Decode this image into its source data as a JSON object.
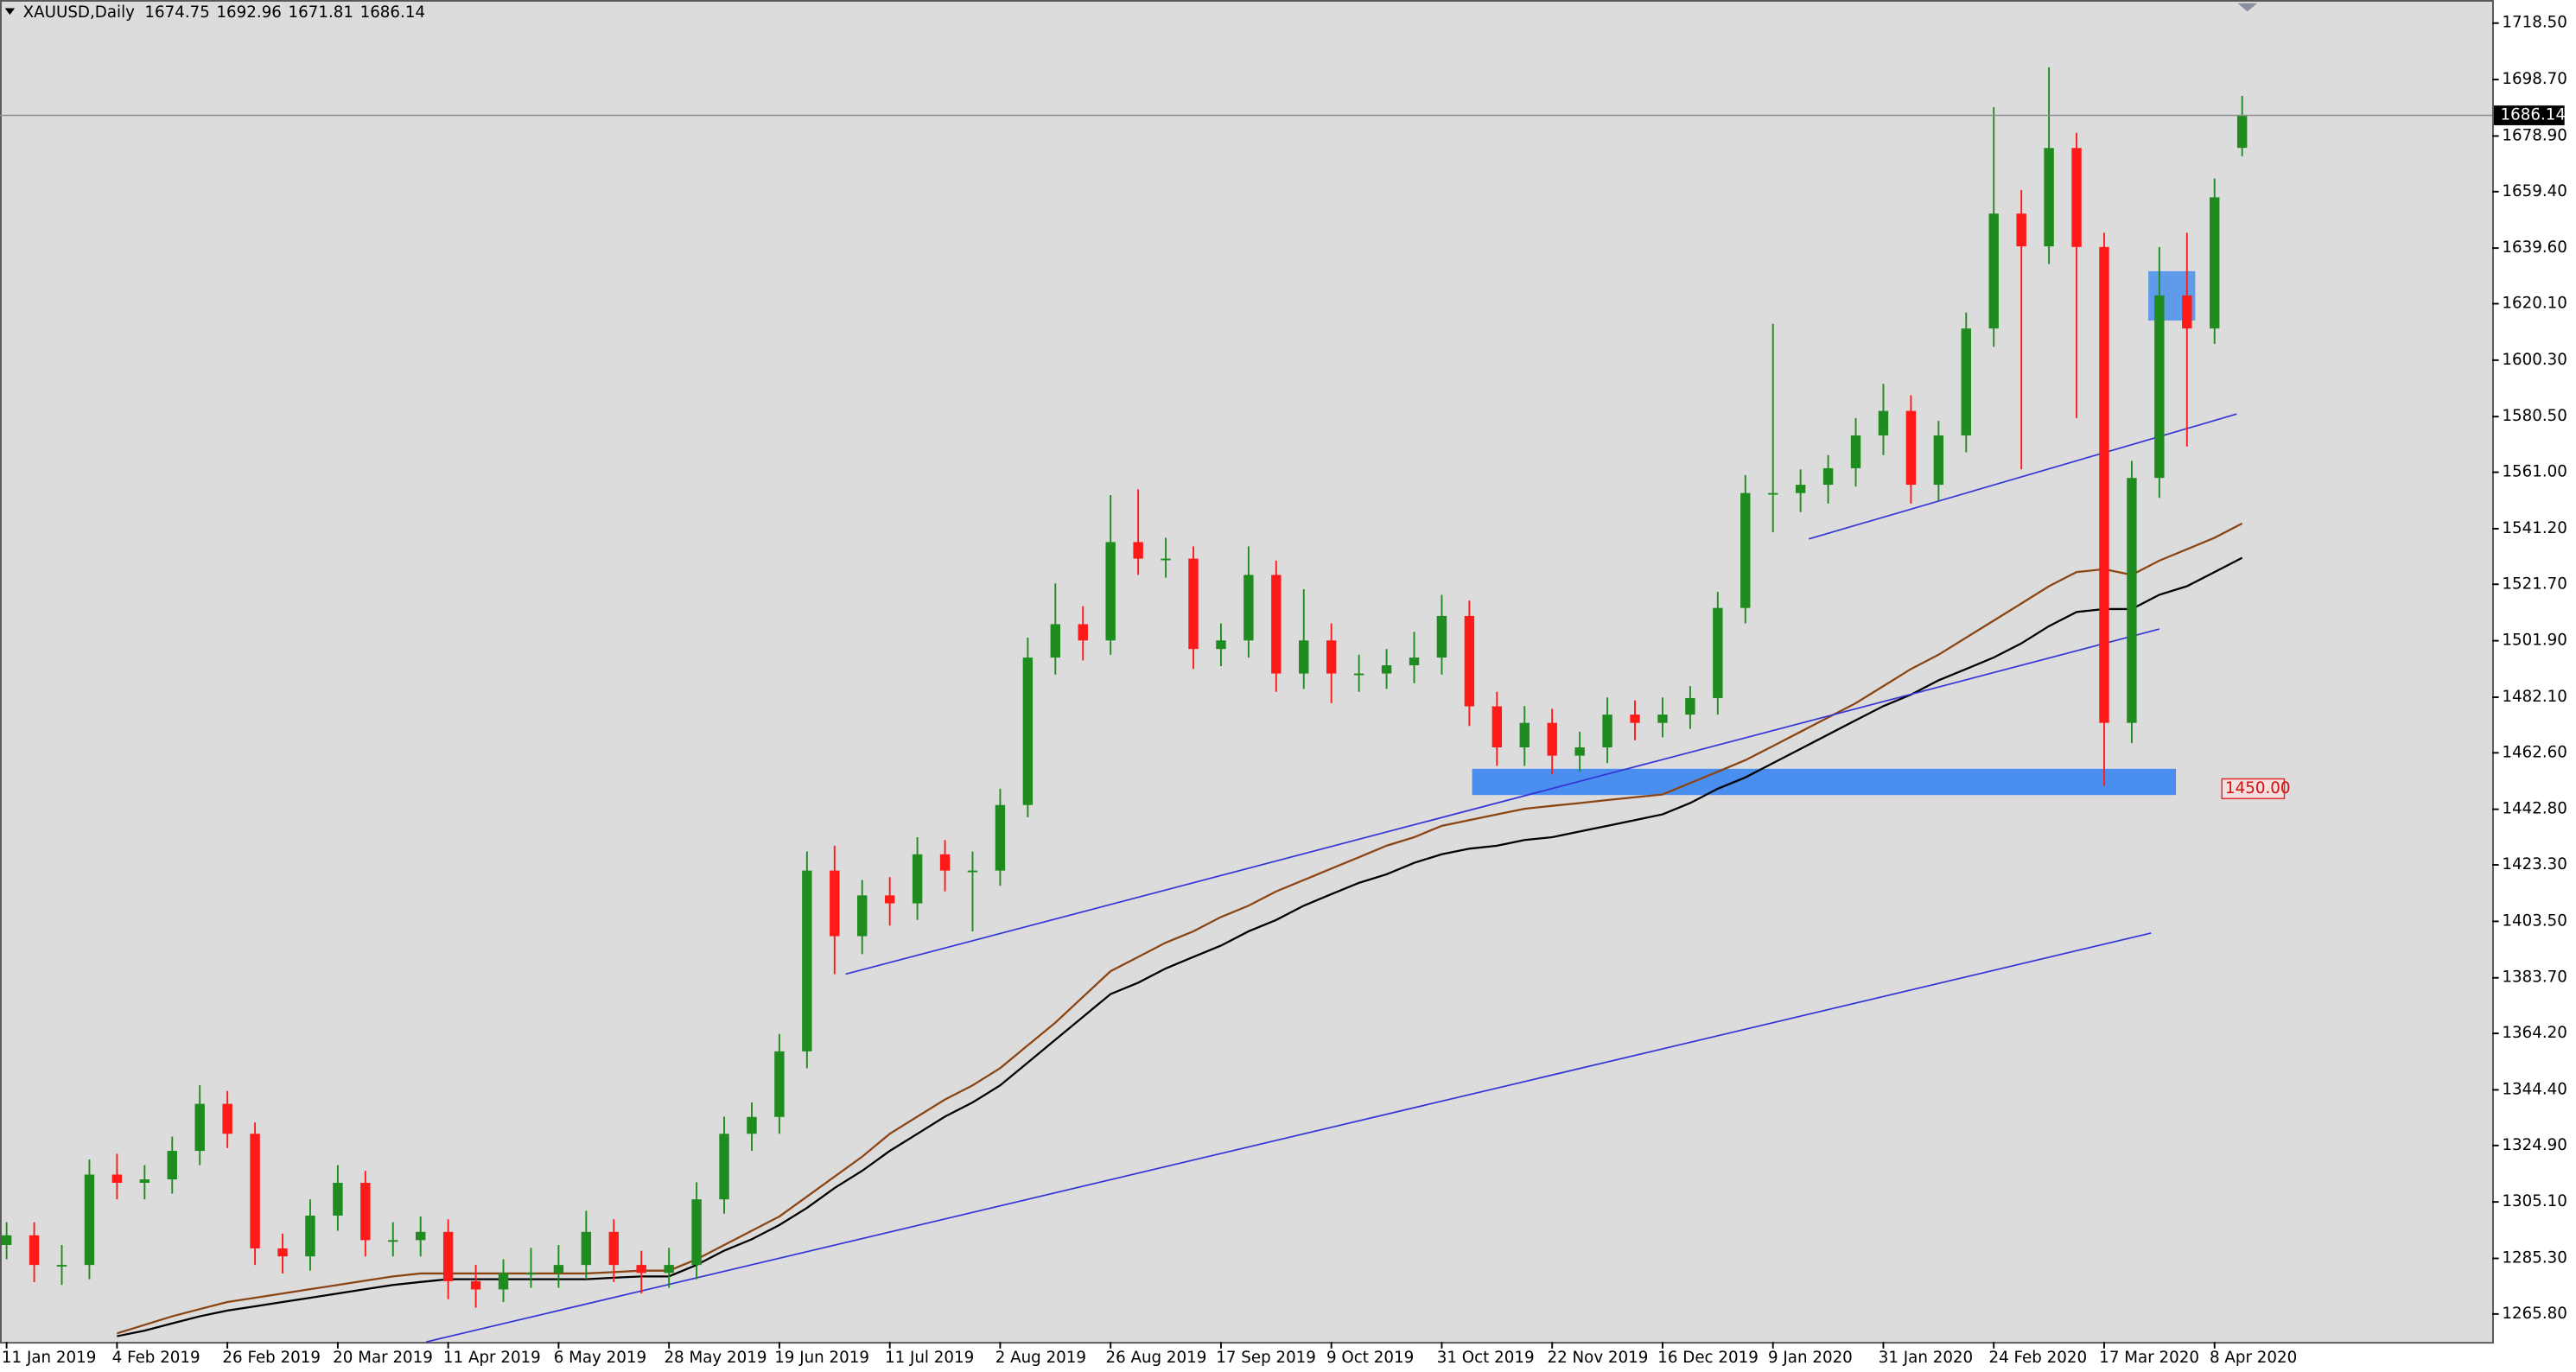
{
  "chart_data": {
    "type": "candlestick",
    "title": "XAUUSD,Daily",
    "up_color": "#1e8c1e",
    "down_color": "#ff1a1a",
    "categories": [
      "11 Jan 2019",
      null,
      null,
      null,
      "4 Feb 2019",
      null,
      null,
      null,
      "26 Feb 2019",
      null,
      null,
      null,
      "20 Mar 2019",
      null,
      null,
      null,
      "11 Apr 2019",
      null,
      null,
      null,
      "6 May 2019",
      null,
      null,
      null,
      "28 May 2019",
      null,
      null,
      null,
      "19 Jun 2019",
      null,
      null,
      null,
      "11 Jul 2019",
      null,
      null,
      null,
      "2 Aug 2019",
      null,
      null,
      null,
      "26 Aug 2019",
      null,
      null,
      null,
      "17 Sep 2019",
      null,
      null,
      null,
      "9 Oct 2019",
      null,
      null,
      null,
      "31 Oct 2019",
      null,
      null,
      null,
      "22 Nov 2019",
      null,
      null,
      null,
      "16 Dec 2019",
      null,
      null,
      null,
      "9 Jan 2020",
      null,
      null,
      null,
      "31 Jan 2020",
      null,
      null,
      null,
      "24 Feb 2020",
      null,
      null,
      null,
      "17 Mar 2020",
      null,
      null,
      null,
      "8 Apr 2020",
      null
    ],
    "open": [
      1290.0,
      1293.4,
      1283.0,
      1283.0,
      1314.7,
      1311.8,
      1313.0,
      1323.0,
      1339.5,
      1329.0,
      1288.8,
      1286.0,
      1300.3,
      1311.8,
      1291.7,
      1291.7,
      1294.6,
      1277.3,
      1274.4,
      1280.2,
      1280.2,
      1283.0,
      1294.6,
      1283.0,
      1280.2,
      1283.0,
      1306.0,
      1329.0,
      1334.9,
      1357.9,
      1421.3,
      1398.3,
      1412.6,
      1409.8,
      1427.0,
      1421.3,
      1421.3,
      1444.3,
      1496.0,
      1507.7,
      1502.0,
      1536.5,
      1530.7,
      1530.7,
      1499.0,
      1502.0,
      1525.0,
      1490.4,
      1502.0,
      1490.4,
      1490.4,
      1493.3,
      1496.0,
      1510.6,
      1478.9,
      1464.5,
      1473.1,
      1461.6,
      1464.5,
      1476.0,
      1473.1,
      1476.0,
      1481.8,
      1513.4,
      1553.7,
      1553.7,
      1556.6,
      1562.4,
      1573.9,
      1582.5,
      1556.6,
      1573.9,
      1611.4,
      1651.7,
      1640.2,
      1674.7,
      1640.0,
      1473.1,
      1559.0,
      1623.0,
      1611.4,
      1674.75
    ],
    "high": [
      1298,
      1298,
      1290,
      1320,
      1322,
      1318,
      1328,
      1346,
      1344,
      1333,
      1294,
      1306,
      1318,
      1316,
      1298,
      1300,
      1299,
      1283,
      1285,
      1289,
      1290,
      1302,
      1299,
      1288,
      1289,
      1312,
      1335,
      1340,
      1364,
      1428,
      1430,
      1418,
      1419,
      1433,
      1432,
      1428,
      1450,
      1503,
      1522,
      1514,
      1553,
      1555,
      1538,
      1535,
      1508,
      1535,
      1530,
      1520,
      1508,
      1497,
      1499,
      1505,
      1518,
      1516,
      1484,
      1479,
      1478,
      1470,
      1482,
      1481,
      1482,
      1486,
      1519,
      1560,
      1613,
      1562,
      1567,
      1580,
      1592,
      1588,
      1579,
      1617,
      1689,
      1660,
      1703,
      1680,
      1645,
      1565,
      1640,
      1645,
      1664,
      1692.96
    ],
    "low": [
      1285,
      1277,
      1276,
      1278,
      1306,
      1306,
      1308,
      1318,
      1324,
      1283,
      1280,
      1281,
      1295,
      1286,
      1286,
      1286,
      1271,
      1268,
      1270,
      1275,
      1275,
      1278,
      1277,
      1273,
      1275,
      1278,
      1301,
      1323,
      1329,
      1352,
      1385,
      1392,
      1402,
      1404,
      1414,
      1400,
      1416,
      1440,
      1490,
      1495,
      1497,
      1525,
      1524,
      1492,
      1493,
      1496,
      1484,
      1485,
      1480,
      1484,
      1485,
      1487,
      1490,
      1472,
      1458,
      1458,
      1455,
      1456,
      1459,
      1467,
      1468,
      1471,
      1476,
      1508,
      1540,
      1547,
      1550,
      1556,
      1567,
      1550,
      1551,
      1568,
      1605,
      1562,
      1634,
      1580,
      1451,
      1466,
      1552,
      1570,
      1606,
      1671.81
    ],
    "close": [
      1293.4,
      1283.0,
      1283.0,
      1314.7,
      1311.8,
      1313.0,
      1323.0,
      1339.5,
      1329.0,
      1288.8,
      1286.0,
      1300.3,
      1311.8,
      1291.7,
      1291.7,
      1294.6,
      1277.3,
      1274.4,
      1280.2,
      1280.2,
      1283.0,
      1294.6,
      1283.0,
      1280.2,
      1283.0,
      1306.0,
      1329.0,
      1334.9,
      1357.9,
      1421.3,
      1398.3,
      1412.6,
      1409.8,
      1427.0,
      1421.3,
      1421.3,
      1444.3,
      1496.0,
      1507.7,
      1502.0,
      1536.5,
      1530.7,
      1530.7,
      1499.0,
      1502.0,
      1525.0,
      1490.4,
      1502.0,
      1490.4,
      1490.4,
      1493.3,
      1496.0,
      1510.6,
      1478.9,
      1464.5,
      1473.1,
      1461.6,
      1464.5,
      1476.0,
      1473.1,
      1476.0,
      1481.8,
      1513.4,
      1553.7,
      1553.7,
      1556.6,
      1562.4,
      1573.9,
      1582.5,
      1556.6,
      1573.9,
      1611.4,
      1651.7,
      1640.2,
      1674.7,
      1640.0,
      1473.1,
      1559.0,
      1623.0,
      1611.4,
      1657.4,
      1686.14
    ],
    "ma": [
      {
        "color": "#8b4513",
        "values": [
          null,
          null,
          null,
          null,
          1259,
          1262,
          1265,
          1267.5,
          1270,
          1271.5,
          1273,
          1274.5,
          1276,
          1277.5,
          1279,
          1280,
          1280,
          1280,
          1280,
          1280,
          1280,
          1280,
          1280.5,
          1281,
          1281,
          1285,
          1290,
          1295,
          1300,
          1307,
          1314,
          1321,
          1329,
          1335,
          1341,
          1346,
          1352,
          1360,
          1368,
          1377,
          1386,
          1391,
          1396,
          1400,
          1405,
          1409,
          1414,
          1418,
          1422,
          1426,
          1430,
          1433,
          1437,
          1439,
          1441,
          1443,
          1444,
          1445,
          1446,
          1447,
          1448,
          1452,
          1456,
          1460,
          1465,
          1470,
          1475,
          1480,
          1486,
          1492,
          1497,
          1503,
          1509,
          1515,
          1521,
          1526,
          1527,
          1525,
          1530,
          1534,
          1538,
          1543
        ]
      },
      {
        "color": "#000000",
        "values": [
          null,
          null,
          null,
          null,
          1258,
          1260,
          1262.5,
          1265,
          1267,
          1268.5,
          1270,
          1271.5,
          1273,
          1274.5,
          1276,
          1277,
          1278,
          1278,
          1278,
          1278,
          1278,
          1278,
          1278.5,
          1279,
          1279,
          1283,
          1288,
          1292,
          1297,
          1303,
          1310,
          1316,
          1323,
          1329,
          1335,
          1340,
          1346,
          1354,
          1362,
          1370,
          1378,
          1382,
          1387,
          1391,
          1395,
          1400,
          1404,
          1409,
          1413,
          1417,
          1420,
          1424,
          1427,
          1429,
          1430,
          1432,
          1433,
          1435,
          1437,
          1439,
          1441,
          1445,
          1450,
          1454,
          1459,
          1464,
          1469,
          1474,
          1479,
          1483,
          1488,
          1492,
          1496,
          1501,
          1507,
          1512,
          1513,
          1513,
          1518,
          1521,
          1526,
          1531
        ]
      }
    ],
    "trendline_color": "#3535d6",
    "trendlines": [
      {
        "x": [
          15.2,
          77.7
        ],
        "y": [
          1256,
          1399.4
        ]
      },
      {
        "x": [
          30.4,
          78.0
        ],
        "y": [
          1385,
          1506
        ]
      },
      {
        "x": [
          65.3,
          80.8
        ],
        "y": [
          1537.6,
          1581.4
        ]
      }
    ],
    "zones": [
      {
        "x": [
          53.1,
          78.6
        ],
        "y": [
          1447.8,
          1457
        ],
        "color": "#4a8ef0"
      },
      {
        "x": [
          77.6,
          79.3
        ],
        "y": [
          1614.2,
          1631.5
        ],
        "color": "#5f9be8"
      }
    ],
    "zone_label": {
      "value": 1450,
      "label": "1450.00"
    },
    "ylim": [
      1256.0,
      1726.6
    ],
    "yticks": [
      {
        "value": 1265.8,
        "label": "1265.80"
      },
      {
        "value": 1285.3,
        "label": "1285.30"
      },
      {
        "value": 1305.1,
        "label": "1305.10"
      },
      {
        "value": 1324.9,
        "label": "1324.90"
      },
      {
        "value": 1344.4,
        "label": "1344.40"
      },
      {
        "value": 1364.2,
        "label": "1364.20"
      },
      {
        "value": 1383.7,
        "label": "1383.70"
      },
      {
        "value": 1403.5,
        "label": "1403.50"
      },
      {
        "value": 1423.3,
        "label": "1423.30"
      },
      {
        "value": 1442.8,
        "label": "1442.80"
      },
      {
        "value": 1462.6,
        "label": "1462.60"
      },
      {
        "value": 1482.1,
        "label": "1482.10"
      },
      {
        "value": 1501.9,
        "label": "1501.90"
      },
      {
        "value": 1521.7,
        "label": "1521.70"
      },
      {
        "value": 1541.2,
        "label": "1541.20"
      },
      {
        "value": 1561.0,
        "label": "1561.00"
      },
      {
        "value": 1580.5,
        "label": "1580.50"
      },
      {
        "value": 1600.3,
        "label": "1600.30"
      },
      {
        "value": 1620.1,
        "label": "1620.10"
      },
      {
        "value": 1639.6,
        "label": "1639.60"
      },
      {
        "value": 1659.4,
        "label": "1659.40"
      },
      {
        "value": 1678.9,
        "label": "1678.90"
      },
      {
        "value": 1698.7,
        "label": "1698.70"
      },
      {
        "value": 1718.5,
        "label": "1718.50"
      }
    ],
    "grid": false
  }
}
